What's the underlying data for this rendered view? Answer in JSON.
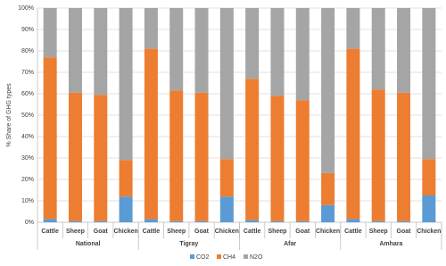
{
  "chart_data": {
    "type": "stacked_bar",
    "y_label": "% Share of GHG types",
    "groups": [
      {
        "name": "National",
        "categories": [
          "Cattle",
          "Sheep",
          "Goat",
          "Chicken"
        ]
      },
      {
        "name": "Tigray",
        "categories": [
          "Cattle",
          "Sheep",
          "Goat",
          "Chicken"
        ]
      },
      {
        "name": "Afar",
        "categories": [
          "Cattle",
          "Sheep",
          "Goat",
          "Chicken"
        ]
      },
      {
        "name": "Amhara",
        "categories": [
          "Cattle",
          "Sheep",
          "Goat",
          "Chicken"
        ]
      }
    ],
    "series": [
      {
        "name": "CO2",
        "color": "#5b9bd5",
        "values": [
          1.5,
          0.5,
          0.5,
          12,
          1.5,
          0.5,
          0.5,
          12,
          1,
          0.5,
          0.5,
          8,
          1.5,
          0.5,
          0.5,
          12.5
        ]
      },
      {
        "name": "CH4",
        "color": "#ed7d31",
        "values": [
          75.5,
          60,
          59,
          17,
          79.5,
          61,
          60,
          17.5,
          66,
          58.5,
          56.5,
          15,
          79.5,
          61.5,
          60,
          17
        ]
      },
      {
        "name": "N2O",
        "color": "#a5a5a5",
        "values": [
          23,
          39.5,
          40.5,
          71,
          19,
          38.5,
          39.5,
          70.5,
          33,
          41,
          43,
          77,
          19,
          38,
          39.5,
          70.5
        ]
      }
    ],
    "ylim": [
      0,
      100
    ],
    "yticks": [
      {
        "value": 0,
        "label": "0%"
      },
      {
        "value": 10,
        "label": "10%"
      },
      {
        "value": 20,
        "label": "20%"
      },
      {
        "value": 30,
        "label": "30%"
      },
      {
        "value": 40,
        "label": "40%"
      },
      {
        "value": 50,
        "label": "50%"
      },
      {
        "value": 60,
        "label": "60%"
      },
      {
        "value": 70,
        "label": "70%"
      },
      {
        "value": 80,
        "label": "80%"
      },
      {
        "value": 90,
        "label": "90%"
      },
      {
        "value": 100,
        "label": "100%"
      }
    ],
    "grid": true,
    "legend": "bottom"
  }
}
